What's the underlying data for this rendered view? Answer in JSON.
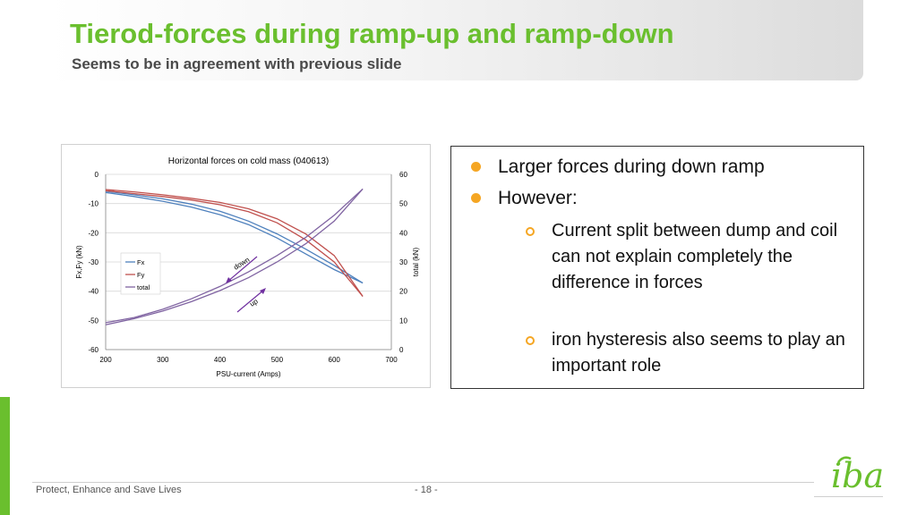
{
  "slide": {
    "title": "Tierod-forces during ramp-up and ramp-down",
    "subtitle": "Seems to be in agreement with previous slide",
    "footer": "Protect, Enhance and Save Lives",
    "page": "- 18 -",
    "logo_text": "iba"
  },
  "bullets": [
    {
      "text": "Larger forces during down ramp"
    },
    {
      "text": "However:"
    }
  ],
  "sub_bullets": [
    {
      "text": "Current split between dump and coil can not explain completely the difference in forces"
    },
    {
      "text": "iron hysteresis also seems to play an important role"
    }
  ],
  "colors": {
    "accent_green": "#6abf2e",
    "bullet_orange": "#f5a623",
    "fx": "#4f81bd",
    "fy": "#c0504d",
    "total": "#8064a2"
  },
  "chart_data": {
    "type": "line",
    "title": "Horizontal forces on cold mass (040613)",
    "xlabel": "PSU-current (Amps)",
    "ylabel": "Fx,Fy (kN)",
    "y2label": "total (kN)",
    "xlim": [
      200,
      700
    ],
    "ylim": [
      -60,
      0
    ],
    "y2lim": [
      0,
      60
    ],
    "xticks": [
      "200",
      "300",
      "400",
      "500",
      "600",
      "700"
    ],
    "yticks": [
      "0",
      "-10",
      "-20",
      "-30",
      "-40",
      "-50",
      "-60"
    ],
    "y2ticks": [
      "60",
      "50",
      "40",
      "30",
      "20",
      "10",
      "0"
    ],
    "legend": [
      "Fx",
      "Fy",
      "total"
    ],
    "legend_position": "left-middle",
    "annotations": [
      "down",
      "up"
    ],
    "series": [
      {
        "name": "Fx",
        "axis": "left",
        "color": "#4f81bd",
        "up": [
          [
            200,
            -6.2
          ],
          [
            250,
            -7.6
          ],
          [
            300,
            -9.2
          ],
          [
            350,
            -11.2
          ],
          [
            400,
            -13.8
          ],
          [
            450,
            -17.2
          ],
          [
            500,
            -21.8
          ],
          [
            550,
            -27.2
          ],
          [
            600,
            -32.6
          ],
          [
            650,
            -37.2
          ]
        ],
        "down": [
          [
            650,
            -37.2
          ],
          [
            600,
            -31.2
          ],
          [
            550,
            -25.6
          ],
          [
            500,
            -20.4
          ],
          [
            450,
            -16.0
          ],
          [
            400,
            -12.6
          ],
          [
            350,
            -10.2
          ],
          [
            300,
            -8.4
          ],
          [
            250,
            -7.0
          ],
          [
            200,
            -5.8
          ]
        ]
      },
      {
        "name": "Fy",
        "axis": "left",
        "color": "#c0504d",
        "up": [
          [
            200,
            -5.6
          ],
          [
            250,
            -6.6
          ],
          [
            300,
            -7.6
          ],
          [
            350,
            -8.8
          ],
          [
            400,
            -10.4
          ],
          [
            450,
            -12.8
          ],
          [
            500,
            -16.6
          ],
          [
            550,
            -22.4
          ],
          [
            600,
            -30.0
          ],
          [
            650,
            -41.8
          ]
        ],
        "down": [
          [
            650,
            -41.8
          ],
          [
            600,
            -27.8
          ],
          [
            550,
            -20.4
          ],
          [
            500,
            -15.2
          ],
          [
            450,
            -11.8
          ],
          [
            400,
            -9.6
          ],
          [
            350,
            -8.2
          ],
          [
            300,
            -7.0
          ],
          [
            250,
            -6.0
          ],
          [
            200,
            -5.2
          ]
        ]
      },
      {
        "name": "total",
        "axis": "right",
        "color": "#8064a2",
        "up": [
          [
            200,
            8.5
          ],
          [
            250,
            10.6
          ],
          [
            300,
            13.2
          ],
          [
            350,
            16.4
          ],
          [
            400,
            20.2
          ],
          [
            450,
            24.6
          ],
          [
            500,
            30.0
          ],
          [
            550,
            36.2
          ],
          [
            600,
            44.0
          ],
          [
            650,
            55.0
          ]
        ],
        "down": [
          [
            650,
            55.0
          ],
          [
            600,
            46.0
          ],
          [
            550,
            38.4
          ],
          [
            500,
            32.2
          ],
          [
            450,
            26.6
          ],
          [
            400,
            21.6
          ],
          [
            350,
            17.4
          ],
          [
            300,
            13.8
          ],
          [
            250,
            11.0
          ],
          [
            200,
            9.2
          ]
        ]
      }
    ]
  }
}
